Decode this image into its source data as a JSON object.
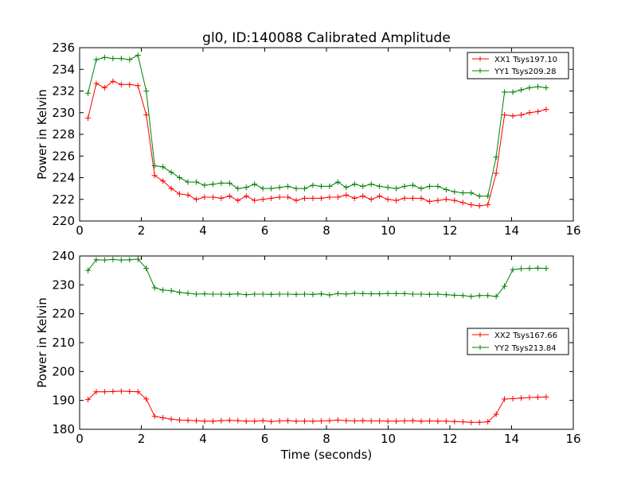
{
  "chart_data": [
    {
      "type": "line",
      "title": "gl0, ID:140088 Calibrated Amplitude",
      "xlabel": "",
      "ylabel": "Power in Kelvin",
      "xlim": [
        0,
        16
      ],
      "ylim": [
        220,
        236
      ],
      "xticks": [
        "0",
        "2",
        "4",
        "6",
        "8",
        "10",
        "12",
        "14",
        "16"
      ],
      "yticks": [
        "220",
        "222",
        "224",
        "226",
        "228",
        "230",
        "232",
        "234",
        "236"
      ],
      "grid": false,
      "legend_position": "top-right",
      "x": [
        0.27,
        0.54,
        0.81,
        1.08,
        1.35,
        1.62,
        1.89,
        2.16,
        2.43,
        2.7,
        2.97,
        3.24,
        3.51,
        3.78,
        4.05,
        4.32,
        4.59,
        4.86,
        5.13,
        5.4,
        5.67,
        5.94,
        6.21,
        6.48,
        6.75,
        7.02,
        7.29,
        7.56,
        7.83,
        8.1,
        8.37,
        8.64,
        8.91,
        9.18,
        9.45,
        9.72,
        9.99,
        10.26,
        10.53,
        10.8,
        11.07,
        11.34,
        11.61,
        11.88,
        12.15,
        12.42,
        12.69,
        12.96,
        13.23,
        13.5,
        13.77,
        14.04,
        14.31,
        14.58,
        14.85,
        15.12
      ],
      "series": [
        {
          "name": "XX1 Tsys197.10",
          "color": "#ff0000",
          "values": [
            229.5,
            232.7,
            232.3,
            232.9,
            232.6,
            232.6,
            232.5,
            229.8,
            224.2,
            223.7,
            223.0,
            222.5,
            222.4,
            222.0,
            222.2,
            222.2,
            222.1,
            222.3,
            221.9,
            222.3,
            221.9,
            222.0,
            222.1,
            222.2,
            222.2,
            221.9,
            222.1,
            222.1,
            222.1,
            222.2,
            222.2,
            222.4,
            222.1,
            222.3,
            222.0,
            222.3,
            222.0,
            221.9,
            222.1,
            222.1,
            222.1,
            221.8,
            221.9,
            222.0,
            221.9,
            221.7,
            221.5,
            221.4,
            221.5,
            224.4,
            229.8,
            229.7,
            229.8,
            230.0,
            230.1,
            230.3
          ]
        },
        {
          "name": "YY1 Tsys209.28",
          "color": "#008000",
          "values": [
            231.8,
            234.9,
            235.1,
            235.0,
            235.0,
            234.9,
            235.3,
            232.0,
            225.1,
            225.0,
            224.5,
            224.0,
            223.6,
            223.6,
            223.3,
            223.4,
            223.5,
            223.5,
            223.0,
            223.1,
            223.4,
            223.0,
            223.0,
            223.1,
            223.2,
            223.0,
            223.0,
            223.3,
            223.2,
            223.2,
            223.6,
            223.1,
            223.4,
            223.2,
            223.4,
            223.2,
            223.1,
            223.0,
            223.2,
            223.3,
            223.0,
            223.2,
            223.2,
            222.9,
            222.7,
            222.6,
            222.6,
            222.3,
            222.3,
            225.9,
            231.9,
            231.9,
            232.1,
            232.3,
            232.4,
            232.3
          ]
        }
      ]
    },
    {
      "type": "line",
      "title": "",
      "xlabel": "Time (seconds)",
      "ylabel": "Power in Kelvin",
      "xlim": [
        0,
        16
      ],
      "ylim": [
        180,
        240
      ],
      "xticks": [
        "0",
        "2",
        "4",
        "6",
        "8",
        "10",
        "12",
        "14",
        "16"
      ],
      "yticks": [
        "180",
        "190",
        "200",
        "210",
        "220",
        "230",
        "240"
      ],
      "grid": false,
      "legend_position": "center-right",
      "x": [
        0.27,
        0.54,
        0.81,
        1.08,
        1.35,
        1.62,
        1.89,
        2.16,
        2.43,
        2.7,
        2.97,
        3.24,
        3.51,
        3.78,
        4.05,
        4.32,
        4.59,
        4.86,
        5.13,
        5.4,
        5.67,
        5.94,
        6.21,
        6.48,
        6.75,
        7.02,
        7.29,
        7.56,
        7.83,
        8.1,
        8.37,
        8.64,
        8.91,
        9.18,
        9.45,
        9.72,
        9.99,
        10.26,
        10.53,
        10.8,
        11.07,
        11.34,
        11.61,
        11.88,
        12.15,
        12.42,
        12.69,
        12.96,
        13.23,
        13.5,
        13.77,
        14.04,
        14.31,
        14.58,
        14.85,
        15.12
      ],
      "series": [
        {
          "name": "XX2 Tsys167.66",
          "color": "#ff0000",
          "values": [
            190.3,
            193.0,
            193.0,
            193.1,
            193.2,
            193.1,
            193.0,
            190.5,
            184.5,
            184.0,
            183.5,
            183.2,
            183.1,
            183.0,
            182.8,
            182.8,
            183.0,
            183.1,
            183.0,
            182.8,
            182.8,
            183.0,
            182.7,
            182.9,
            183.0,
            182.8,
            182.8,
            182.8,
            182.9,
            183.0,
            183.2,
            183.0,
            182.9,
            183.0,
            182.9,
            182.9,
            182.8,
            182.8,
            182.9,
            183.0,
            182.8,
            182.9,
            182.8,
            182.8,
            182.7,
            182.6,
            182.4,
            182.4,
            182.6,
            185.2,
            190.5,
            190.6,
            190.8,
            191.0,
            191.1,
            191.2
          ]
        },
        {
          "name": "YY2 Tsys213.84",
          "color": "#008000",
          "values": [
            235.0,
            238.7,
            238.6,
            238.8,
            238.6,
            238.7,
            238.9,
            235.7,
            229.0,
            228.2,
            228.0,
            227.4,
            227.1,
            226.8,
            226.9,
            226.8,
            226.8,
            226.7,
            226.9,
            226.6,
            226.8,
            226.8,
            226.7,
            226.8,
            226.8,
            226.7,
            226.8,
            226.7,
            226.9,
            226.5,
            227.0,
            226.8,
            227.1,
            227.0,
            226.9,
            226.9,
            227.0,
            227.0,
            227.0,
            226.8,
            226.8,
            226.7,
            226.8,
            226.6,
            226.4,
            226.3,
            226.0,
            226.3,
            226.3,
            226.0,
            229.5,
            235.3,
            235.6,
            235.7,
            235.8,
            235.7
          ]
        }
      ]
    }
  ]
}
